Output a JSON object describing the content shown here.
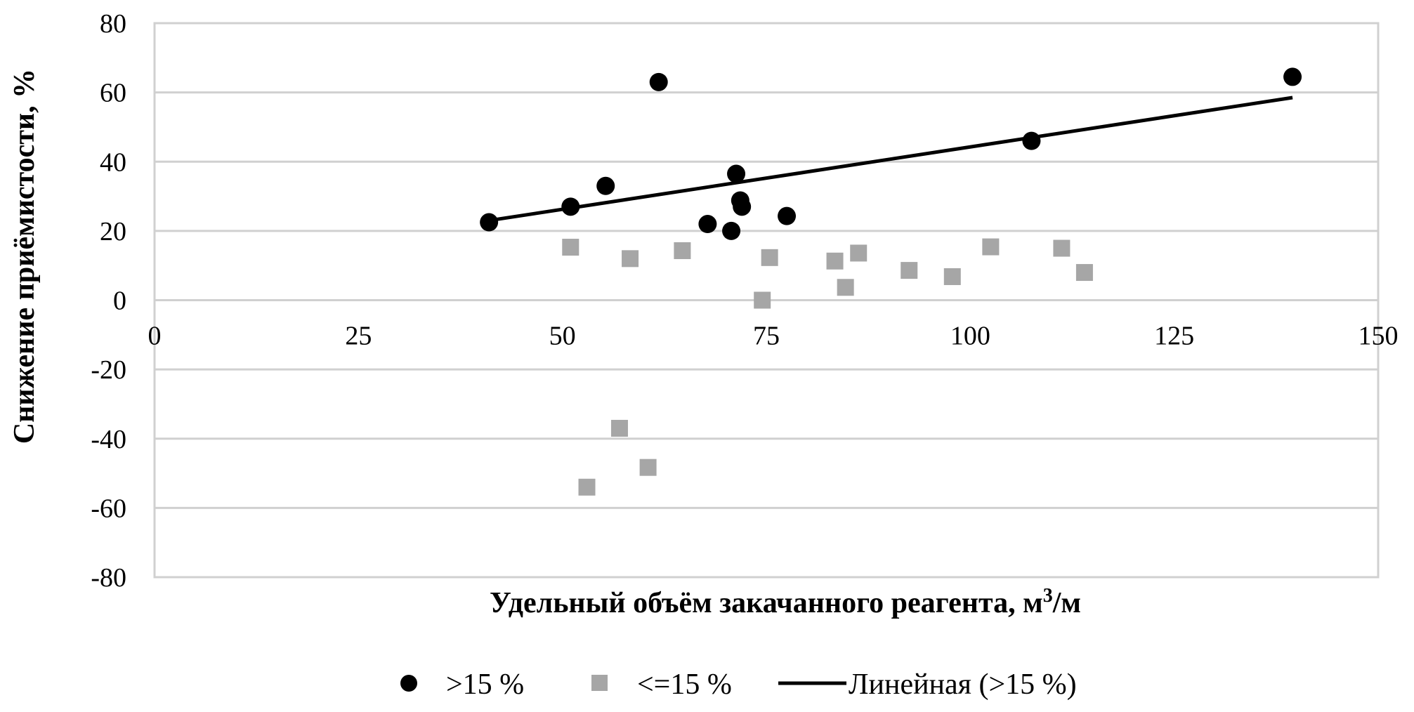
{
  "chart_data": {
    "type": "scatter",
    "xlabel": "Удельный объём закачанного реагента, м",
    "xlabel_sup": "3",
    "xlabel_suffix": "/м",
    "ylabel": "Снижение приёмистости, %",
    "xlim": [
      0,
      150
    ],
    "ylim": [
      -80,
      80
    ],
    "x_ticks": [
      0,
      25,
      50,
      75,
      100,
      125,
      150
    ],
    "y_ticks": [
      80,
      60,
      40,
      20,
      0,
      -20,
      -40,
      -60,
      -80
    ],
    "grid": "horizontal",
    "legend_position": "bottom",
    "series": [
      {
        "name": ">15 %",
        "marker": "circle",
        "color": "#000000",
        "points": [
          {
            "x": 41,
            "y": 22.5
          },
          {
            "x": 51,
            "y": 27
          },
          {
            "x": 55.3,
            "y": 33
          },
          {
            "x": 61.8,
            "y": 63
          },
          {
            "x": 67.8,
            "y": 22
          },
          {
            "x": 70.7,
            "y": 20
          },
          {
            "x": 71.3,
            "y": 36.5
          },
          {
            "x": 71.8,
            "y": 28.8
          },
          {
            "x": 72,
            "y": 27
          },
          {
            "x": 77.5,
            "y": 24.3
          },
          {
            "x": 107.5,
            "y": 46
          },
          {
            "x": 139.5,
            "y": 64.5
          }
        ]
      },
      {
        "name": "<=15 %",
        "marker": "square",
        "color": "#a6a6a6",
        "points": [
          {
            "x": 51,
            "y": 15.3
          },
          {
            "x": 53,
            "y": -54
          },
          {
            "x": 57,
            "y": -37
          },
          {
            "x": 58.3,
            "y": 12
          },
          {
            "x": 60.5,
            "y": -48.3
          },
          {
            "x": 64.7,
            "y": 14.3
          },
          {
            "x": 74.5,
            "y": 0
          },
          {
            "x": 75.4,
            "y": 12.3
          },
          {
            "x": 83.4,
            "y": 11.3
          },
          {
            "x": 84.7,
            "y": 3.7
          },
          {
            "x": 86.3,
            "y": 13.6
          },
          {
            "x": 92.5,
            "y": 8.6
          },
          {
            "x": 97.8,
            "y": 6.8
          },
          {
            "x": 102.5,
            "y": 15.4
          },
          {
            "x": 111.2,
            "y": 15
          },
          {
            "x": 114,
            "y": 8
          }
        ]
      }
    ],
    "trendline": {
      "name": "Линейная (>15  %)",
      "color": "#000000",
      "x": [
        41,
        139.5
      ],
      "y": [
        23,
        58.5
      ]
    }
  }
}
